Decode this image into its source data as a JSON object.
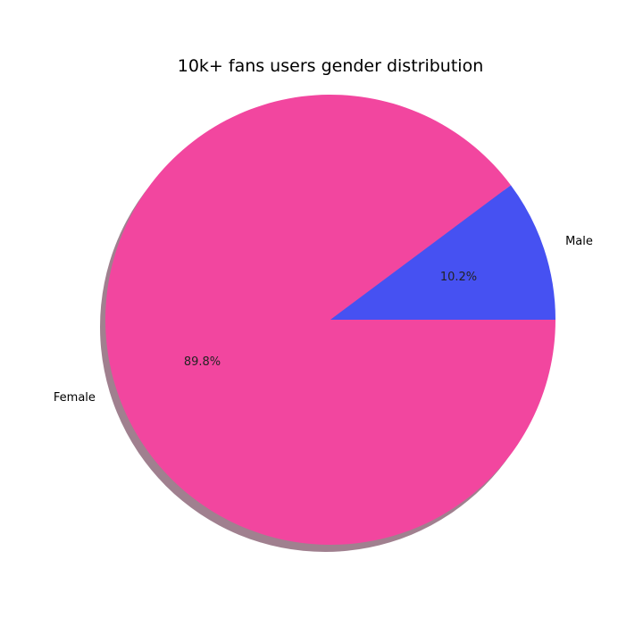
{
  "chart_data": {
    "type": "pie",
    "title": "10k+ fans users gender distribution",
    "categories": [
      "Female",
      "Male"
    ],
    "values": [
      89.8,
      10.2
    ],
    "percent_labels": [
      "89.8%",
      "10.2%"
    ],
    "colors": [
      "#f2469f",
      "#4651f2"
    ],
    "shadow": true,
    "start_angle_deg": 0,
    "direction": "clockwise",
    "legend": "none"
  }
}
